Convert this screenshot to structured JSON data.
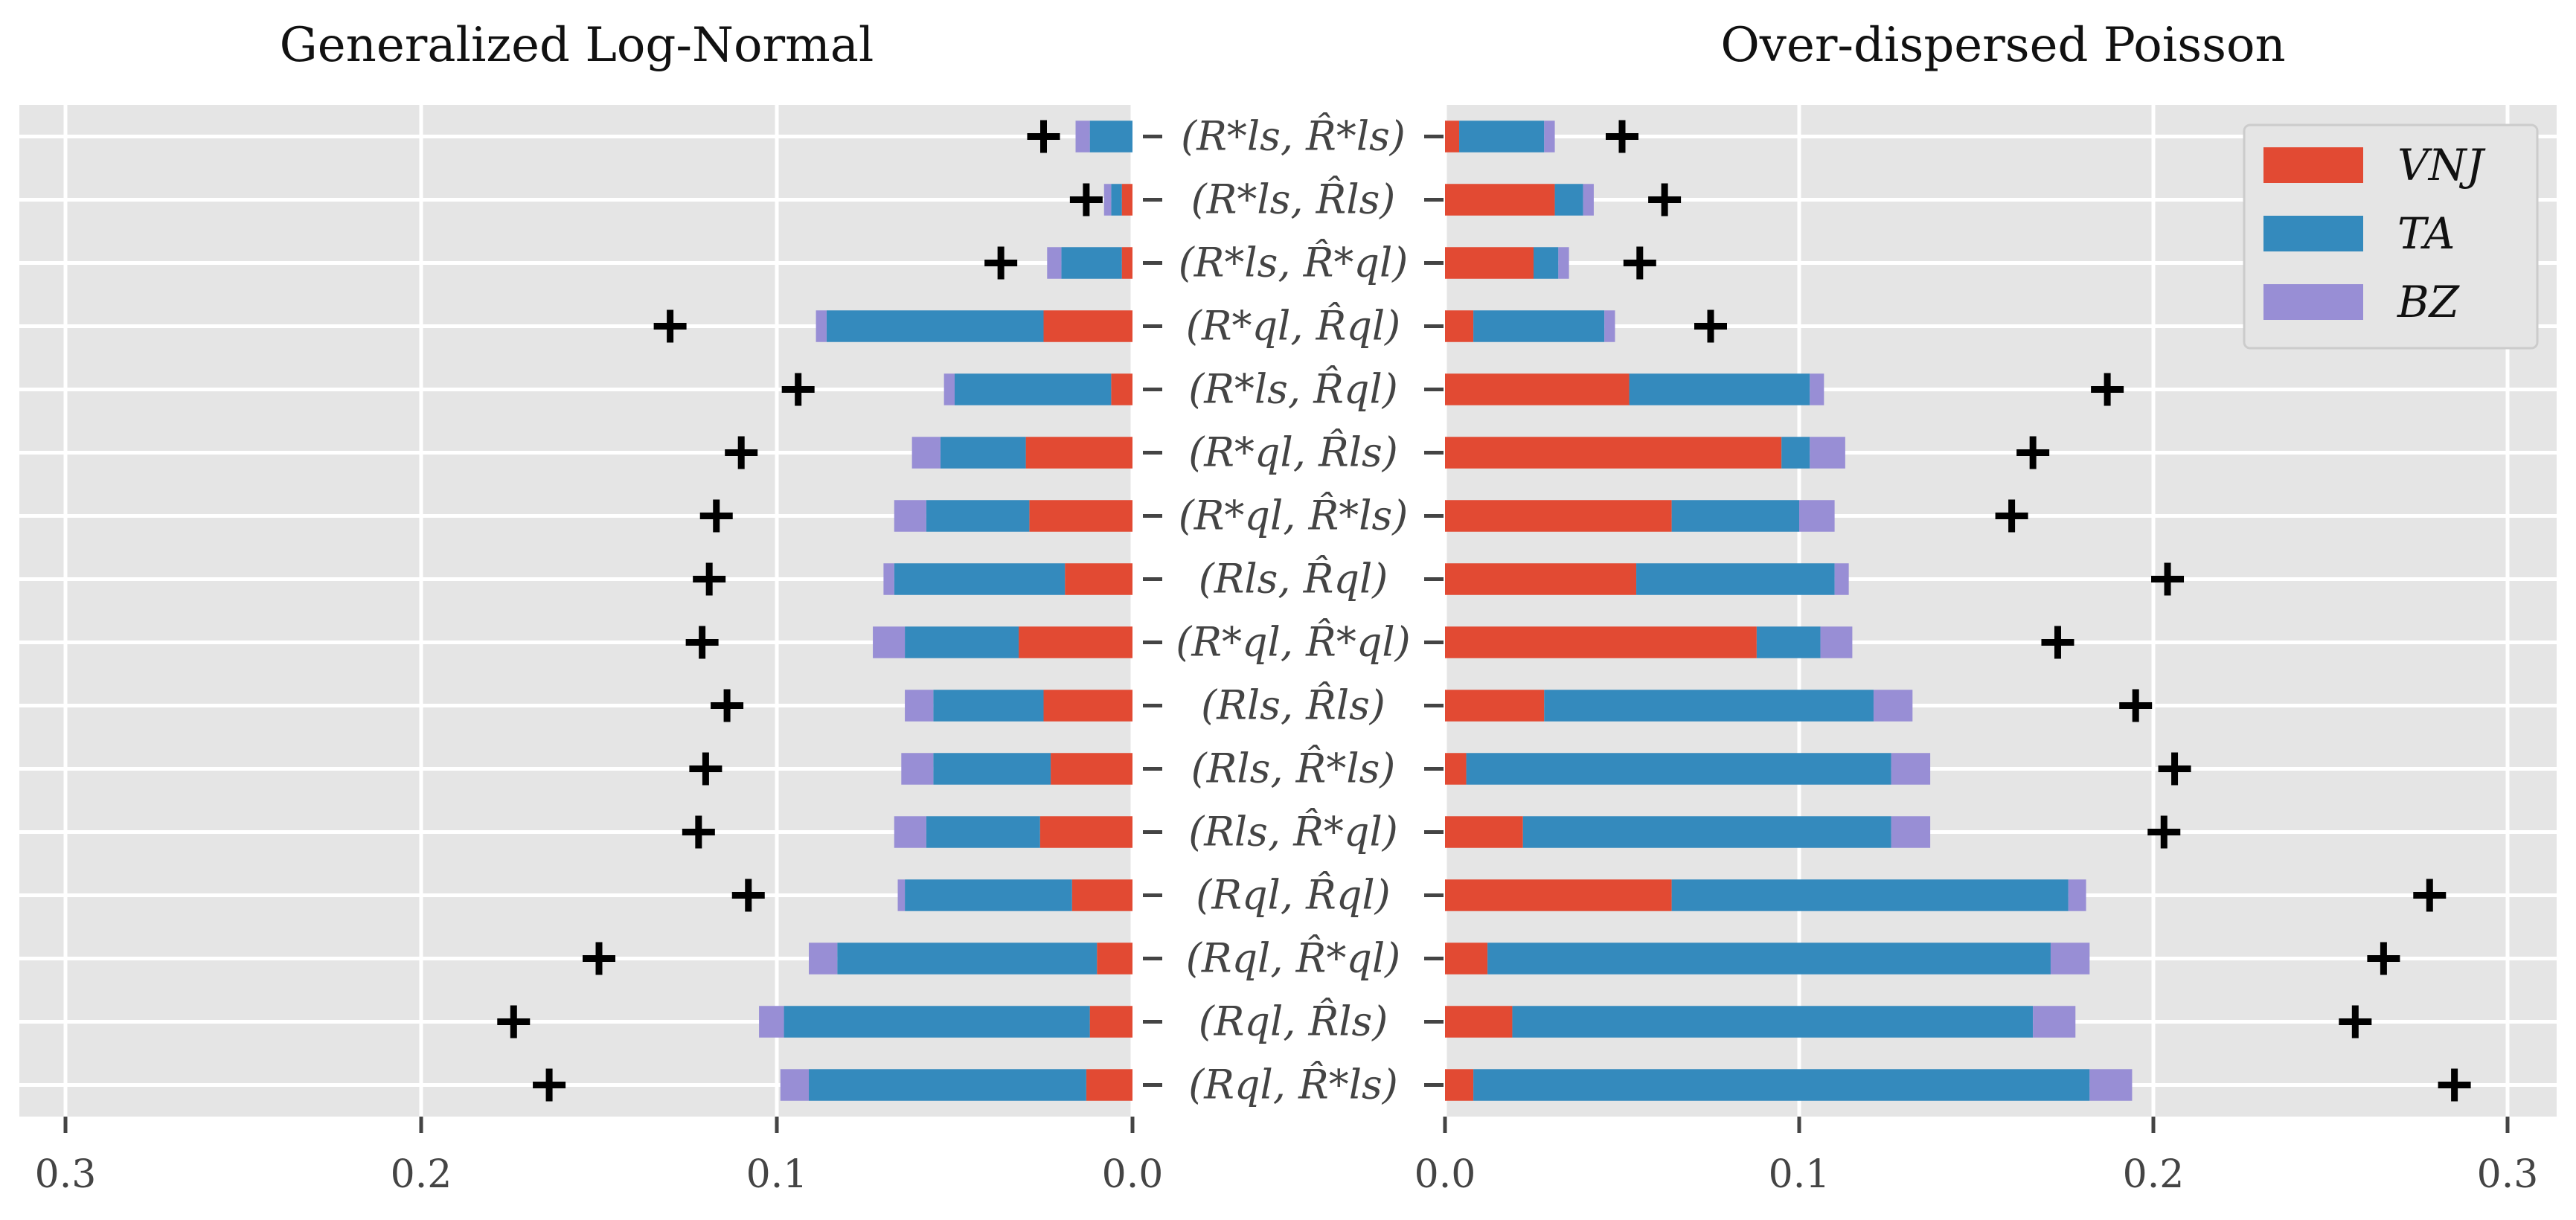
{
  "chart_data": {
    "type": "bar",
    "orientation": "horizontal-stacked",
    "categories": [
      "(R*ls, R̂*ls)",
      "(R*ls, R̂ls)",
      "(R*ls, R̂*ql)",
      "(R*ql, R̂ql)",
      "(R*ls, R̂ql)",
      "(R*ql, R̂ls)",
      "(R*ql, R̂*ls)",
      "(Rls, R̂ql)",
      "(R*ql, R̂*ql)",
      "(Rls, R̂ls)",
      "(Rls, R̂*ls)",
      "(Rls, R̂*ql)",
      "(Rql, R̂ql)",
      "(Rql, R̂*ql)",
      "(Rql, R̂ls)",
      "(Rql, R̂*ls)"
    ],
    "legend": {
      "position": "top-right",
      "entries": [
        {
          "name": "VNJ",
          "color": "#e24a33"
        },
        {
          "name": "TA",
          "color": "#348abd"
        },
        {
          "name": "BZ",
          "color": "#988ed5"
        }
      ]
    },
    "xlim": [
      0,
      0.3
    ],
    "xticks": [
      "0.0",
      "0.1",
      "0.2",
      "0.3"
    ],
    "left_xticks": [
      "0.3",
      "0.2",
      "0.1",
      "0.0"
    ],
    "panels": [
      {
        "title": "Generalized Log-Normal",
        "direction": "reversed",
        "series": [
          {
            "name": "VNJ",
            "values": [
              0.0,
              0.003,
              0.003,
              0.025,
              0.006,
              0.03,
              0.029,
              0.019,
              0.032,
              0.025,
              0.023,
              0.026,
              0.017,
              0.01,
              0.012,
              0.013
            ]
          },
          {
            "name": "TA",
            "values": [
              0.012,
              0.003,
              0.017,
              0.061,
              0.044,
              0.024,
              0.029,
              0.048,
              0.032,
              0.031,
              0.033,
              0.032,
              0.047,
              0.073,
              0.086,
              0.078
            ]
          },
          {
            "name": "BZ",
            "values": [
              0.004,
              0.002,
              0.004,
              0.003,
              0.003,
              0.008,
              0.009,
              0.003,
              0.009,
              0.008,
              0.009,
              0.009,
              0.002,
              0.008,
              0.007,
              0.008
            ]
          }
        ],
        "markers": [
          0.025,
          0.013,
          0.037,
          0.13,
          0.094,
          0.11,
          0.117,
          0.119,
          0.121,
          0.114,
          0.12,
          0.122,
          0.108,
          0.15,
          0.174,
          0.164
        ]
      },
      {
        "title": "Over-dispersed Poisson",
        "direction": "normal",
        "series": [
          {
            "name": "VNJ",
            "values": [
              0.004,
              0.031,
              0.025,
              0.008,
              0.052,
              0.095,
              0.064,
              0.054,
              0.088,
              0.028,
              0.006,
              0.022,
              0.064,
              0.012,
              0.019,
              0.008
            ]
          },
          {
            "name": "TA",
            "values": [
              0.024,
              0.008,
              0.007,
              0.037,
              0.051,
              0.008,
              0.036,
              0.056,
              0.018,
              0.093,
              0.12,
              0.104,
              0.112,
              0.159,
              0.147,
              0.174
            ]
          },
          {
            "name": "BZ",
            "values": [
              0.003,
              0.003,
              0.003,
              0.003,
              0.004,
              0.01,
              0.01,
              0.004,
              0.009,
              0.011,
              0.011,
              0.011,
              0.005,
              0.011,
              0.012,
              0.012
            ]
          }
        ],
        "markers": [
          0.05,
          0.062,
          0.055,
          0.075,
          0.187,
          0.166,
          0.16,
          0.204,
          0.173,
          0.195,
          0.206,
          0.203,
          0.278,
          0.265,
          0.257,
          0.285
        ]
      }
    ]
  }
}
